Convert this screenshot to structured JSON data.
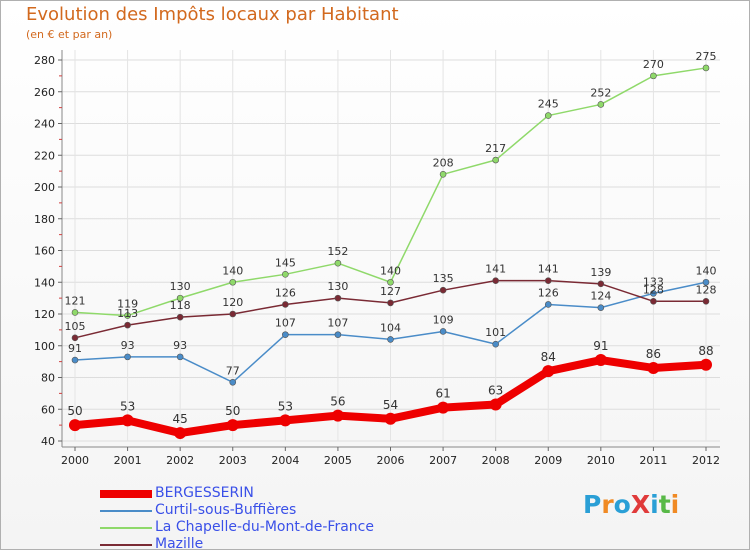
{
  "header": {
    "title": "Evolution des Impôts locaux par Habitant",
    "subtitle": "(en € et par an)"
  },
  "logo": {
    "text": "ProXiti",
    "colors": [
      "#2a9fd6",
      "#f08a24",
      "#2a9fd6",
      "#e03a3a",
      "#2a9fd6",
      "#58b947",
      "#f08a24"
    ]
  },
  "chart_data": {
    "type": "line",
    "x": [
      2000,
      2001,
      2002,
      2003,
      2004,
      2005,
      2006,
      2007,
      2008,
      2009,
      2010,
      2011,
      2012
    ],
    "ylim": [
      40,
      280
    ],
    "yticks": [
      40,
      60,
      80,
      100,
      120,
      140,
      160,
      180,
      200,
      220,
      240,
      260,
      280
    ],
    "grid": true,
    "legend_position": "bottom-left",
    "series": [
      {
        "name": "BERGESSERIN",
        "color": "#ee0000",
        "width": "thick",
        "values": [
          50,
          53,
          45,
          50,
          53,
          56,
          54,
          61,
          63,
          84,
          91,
          86,
          88
        ]
      },
      {
        "name": "Curtil-sous-Buffières",
        "color": "#4a8cc8",
        "width": "thin",
        "values": [
          91,
          93,
          93,
          77,
          107,
          107,
          104,
          109,
          101,
          126,
          124,
          133,
          140
        ]
      },
      {
        "name": "La Chapelle-du-Mont-de-France",
        "color": "#8fd96a",
        "width": "thin",
        "values": [
          121,
          119,
          130,
          140,
          145,
          152,
          140,
          208,
          217,
          245,
          252,
          270,
          275
        ]
      },
      {
        "name": "Mazille",
        "color": "#7a2a34",
        "width": "thin",
        "values": [
          105,
          113,
          118,
          120,
          126,
          130,
          127,
          135,
          141,
          141,
          139,
          128,
          128
        ]
      }
    ]
  }
}
